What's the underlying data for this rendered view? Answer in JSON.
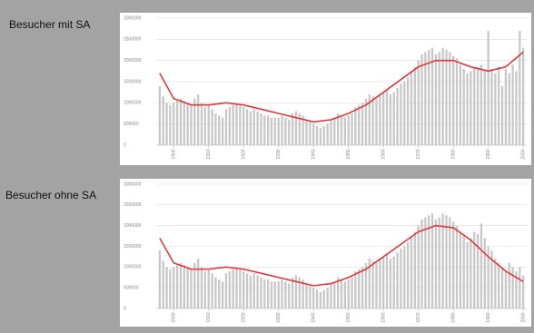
{
  "chart_data": [
    {
      "type": "bar",
      "title": "Besucher mit SA",
      "xlim": [
        1895,
        2001
      ],
      "ylim": [
        0,
        3000000
      ],
      "xticks": [
        1900,
        1910,
        1920,
        1930,
        1940,
        1950,
        1960,
        1970,
        1980,
        1990,
        2000
      ],
      "yticks": [
        0,
        500000,
        1000000,
        1500000,
        2000000,
        2500000,
        3000000
      ],
      "grid": true,
      "series": [
        {
          "type": "bar",
          "color": "#c8c8c8",
          "x": [
            1896,
            1897,
            1898,
            1899,
            1900,
            1901,
            1902,
            1903,
            1904,
            1905,
            1906,
            1907,
            1908,
            1909,
            1910,
            1911,
            1912,
            1913,
            1914,
            1915,
            1916,
            1917,
            1918,
            1919,
            1920,
            1921,
            1922,
            1923,
            1924,
            1925,
            1926,
            1927,
            1928,
            1929,
            1930,
            1931,
            1932,
            1933,
            1934,
            1935,
            1936,
            1937,
            1938,
            1939,
            1940,
            1941,
            1942,
            1943,
            1944,
            1945,
            1946,
            1947,
            1948,
            1949,
            1950,
            1951,
            1952,
            1953,
            1954,
            1955,
            1956,
            1957,
            1958,
            1959,
            1960,
            1961,
            1962,
            1963,
            1964,
            1965,
            1966,
            1967,
            1968,
            1969,
            1970,
            1971,
            1972,
            1973,
            1974,
            1975,
            1976,
            1977,
            1978,
            1979,
            1980,
            1981,
            1982,
            1983,
            1984,
            1985,
            1986,
            1987,
            1988,
            1989,
            1990,
            1991,
            1992,
            1993,
            1994,
            1995,
            1996,
            1997,
            1998,
            1999,
            2000
          ],
          "values": [
            1400000,
            1150000,
            1000000,
            950000,
            1000000,
            1050000,
            1100000,
            1050000,
            1000000,
            950000,
            1100000,
            1200000,
            1000000,
            900000,
            950000,
            850000,
            750000,
            700000,
            650000,
            850000,
            900000,
            950000,
            1000000,
            950000,
            900000,
            850000,
            800000,
            850000,
            800000,
            750000,
            700000,
            700000,
            650000,
            650000,
            650000,
            700000,
            650000,
            600000,
            750000,
            800000,
            750000,
            700000,
            600000,
            550000,
            500000,
            450000,
            400000,
            450000,
            500000,
            600000,
            650000,
            750000,
            700000,
            650000,
            700000,
            750000,
            900000,
            950000,
            1000000,
            1100000,
            1200000,
            1150000,
            1100000,
            1200000,
            1250000,
            1300000,
            1200000,
            1250000,
            1350000,
            1450000,
            1500000,
            1600000,
            1750000,
            1850000,
            2000000,
            2150000,
            2200000,
            2250000,
            2300000,
            2150000,
            2200000,
            2300000,
            2250000,
            2200000,
            2100000,
            2050000,
            1900000,
            1800000,
            1700000,
            1750000,
            1850000,
            1800000,
            1900000,
            1750000,
            2700000,
            1800000,
            1700000,
            1850000,
            1400000,
            1800000,
            1700000,
            1900000,
            1750000,
            2700000,
            2300000
          ]
        },
        {
          "type": "line",
          "color": "#e0393e",
          "x": [
            1896,
            1900,
            1905,
            1910,
            1915,
            1920,
            1925,
            1930,
            1935,
            1940,
            1945,
            1950,
            1955,
            1960,
            1965,
            1970,
            1975,
            1980,
            1985,
            1990,
            1995,
            2000
          ],
          "values": [
            1700000,
            1100000,
            950000,
            950000,
            1000000,
            950000,
            850000,
            750000,
            650000,
            550000,
            600000,
            750000,
            950000,
            1250000,
            1550000,
            1850000,
            2000000,
            2000000,
            1850000,
            1750000,
            1850000,
            2200000
          ]
        }
      ]
    },
    {
      "type": "bar",
      "title": "Besucher ohne SA",
      "xlim": [
        1895,
        2001
      ],
      "ylim": [
        0,
        3000000
      ],
      "xticks": [
        1900,
        1910,
        1920,
        1930,
        1940,
        1950,
        1960,
        1970,
        1980,
        1990,
        2000
      ],
      "yticks": [
        0,
        500000,
        1000000,
        1500000,
        2000000,
        2500000,
        3000000
      ],
      "grid": true,
      "series": [
        {
          "type": "bar",
          "color": "#c8c8c8",
          "x": [
            1896,
            1897,
            1898,
            1899,
            1900,
            1901,
            1902,
            1903,
            1904,
            1905,
            1906,
            1907,
            1908,
            1909,
            1910,
            1911,
            1912,
            1913,
            1914,
            1915,
            1916,
            1917,
            1918,
            1919,
            1920,
            1921,
            1922,
            1923,
            1924,
            1925,
            1926,
            1927,
            1928,
            1929,
            1930,
            1931,
            1932,
            1933,
            1934,
            1935,
            1936,
            1937,
            1938,
            1939,
            1940,
            1941,
            1942,
            1943,
            1944,
            1945,
            1946,
            1947,
            1948,
            1949,
            1950,
            1951,
            1952,
            1953,
            1954,
            1955,
            1956,
            1957,
            1958,
            1959,
            1960,
            1961,
            1962,
            1963,
            1964,
            1965,
            1966,
            1967,
            1968,
            1969,
            1970,
            1971,
            1972,
            1973,
            1974,
            1975,
            1976,
            1977,
            1978,
            1979,
            1980,
            1981,
            1982,
            1983,
            1984,
            1985,
            1986,
            1987,
            1988,
            1989,
            1990,
            1991,
            1992,
            1993,
            1994,
            1995,
            1996,
            1997,
            1998,
            1999,
            2000
          ],
          "values": [
            1400000,
            1150000,
            1000000,
            950000,
            1000000,
            1050000,
            1100000,
            1050000,
            1000000,
            950000,
            1100000,
            1200000,
            1000000,
            900000,
            950000,
            850000,
            750000,
            700000,
            650000,
            850000,
            900000,
            950000,
            1000000,
            950000,
            900000,
            850000,
            800000,
            850000,
            800000,
            750000,
            700000,
            700000,
            650000,
            650000,
            650000,
            700000,
            650000,
            600000,
            750000,
            800000,
            750000,
            700000,
            600000,
            550000,
            500000,
            450000,
            400000,
            450000,
            500000,
            600000,
            650000,
            750000,
            700000,
            650000,
            700000,
            750000,
            900000,
            950000,
            1000000,
            1100000,
            1200000,
            1150000,
            1100000,
            1200000,
            1250000,
            1300000,
            1200000,
            1250000,
            1350000,
            1450000,
            1500000,
            1600000,
            1750000,
            1850000,
            2000000,
            2150000,
            2200000,
            2250000,
            2300000,
            2150000,
            2200000,
            2300000,
            2250000,
            2200000,
            2100000,
            2000000,
            1850000,
            1750000,
            1600000,
            1700000,
            1850000,
            1800000,
            2050000,
            1700000,
            1500000,
            1400000,
            1200000,
            1100000,
            1000000,
            900000,
            1100000,
            1000000,
            900000,
            1000000,
            800000
          ]
        },
        {
          "type": "line",
          "color": "#e0393e",
          "x": [
            1896,
            1900,
            1905,
            1910,
            1915,
            1920,
            1925,
            1930,
            1935,
            1940,
            1945,
            1950,
            1955,
            1960,
            1965,
            1970,
            1975,
            1980,
            1985,
            1990,
            1995,
            2000
          ],
          "values": [
            1700000,
            1100000,
            950000,
            950000,
            1000000,
            950000,
            850000,
            750000,
            650000,
            550000,
            600000,
            750000,
            950000,
            1250000,
            1550000,
            1850000,
            2000000,
            1950000,
            1650000,
            1250000,
            900000,
            650000
          ]
        }
      ]
    }
  ]
}
